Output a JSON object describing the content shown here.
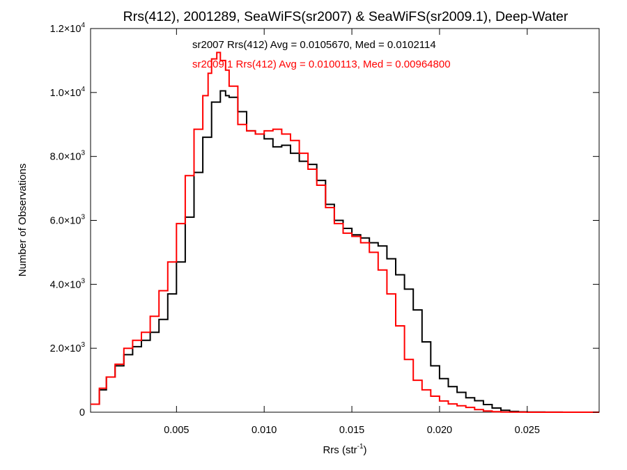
{
  "chart_data": {
    "type": "line",
    "title": "Rrs(412), 2001289, SeaWiFS(sr2007) & SeaWiFS(sr2009.1), Deep-Water",
    "xlabel": {
      "main": "Rrs (str",
      "sup": "-1",
      "close": ")"
    },
    "ylabel": "Number of Observations",
    "xlim": [
      0.0001,
      0.0291
    ],
    "ylim": [
      0,
      12000
    ],
    "x_ticks": [
      {
        "value": 0.005,
        "label": "0.005"
      },
      {
        "value": 0.01,
        "label": "0.010"
      },
      {
        "value": 0.015,
        "label": "0.015"
      },
      {
        "value": 0.02,
        "label": "0.020"
      },
      {
        "value": 0.025,
        "label": "0.025"
      }
    ],
    "y_ticks": [
      {
        "value": 0,
        "mant": "0",
        "exp": ""
      },
      {
        "value": 2000,
        "mant": "2.0×10",
        "exp": "3"
      },
      {
        "value": 4000,
        "mant": "4.0×10",
        "exp": "3"
      },
      {
        "value": 6000,
        "mant": "6.0×10",
        "exp": "3"
      },
      {
        "value": 8000,
        "mant": "8.0×10",
        "exp": "3"
      },
      {
        "value": 10000,
        "mant": "1.0×10",
        "exp": "4"
      },
      {
        "value": 12000,
        "mant": "1.2×10",
        "exp": "4"
      }
    ],
    "annotations": [
      {
        "text": "sr2007 Rrs(412) Avg = 0.0105670, Med = 0.0102114",
        "color": "#000000"
      },
      {
        "text": "sr2009.1 Rrs(412) Avg = 0.0100113, Med = 0.00964800",
        "color": "#ff0000"
      }
    ],
    "style": "step",
    "series": [
      {
        "color": "#000000",
        "x": [
          0.0001,
          0.0006,
          0.001,
          0.0015,
          0.002,
          0.0025,
          0.003,
          0.0035,
          0.004,
          0.0045,
          0.005,
          0.0055,
          0.006,
          0.0065,
          0.007,
          0.0075,
          0.0078,
          0.008,
          0.0085,
          0.009,
          0.0095,
          0.01,
          0.0105,
          0.011,
          0.0115,
          0.012,
          0.0125,
          0.013,
          0.0135,
          0.014,
          0.0145,
          0.015,
          0.0155,
          0.016,
          0.0165,
          0.017,
          0.0175,
          0.018,
          0.0185,
          0.019,
          0.0195,
          0.02,
          0.0205,
          0.021,
          0.0215,
          0.022,
          0.0225,
          0.023,
          0.0235,
          0.024,
          0.0245,
          0.025,
          0.026,
          0.027,
          0.028,
          0.029
        ],
        "y": [
          250,
          700,
          1100,
          1450,
          1800,
          2050,
          2250,
          2500,
          2900,
          3700,
          4700,
          6100,
          7500,
          8600,
          9700,
          10050,
          9900,
          9850,
          9400,
          8800,
          8700,
          8550,
          8300,
          8350,
          8100,
          7850,
          7750,
          7250,
          6500,
          6000,
          5750,
          5550,
          5450,
          5300,
          5200,
          4800,
          4300,
          3850,
          3200,
          2200,
          1450,
          1050,
          800,
          620,
          450,
          360,
          240,
          130,
          60,
          25,
          10,
          5,
          2,
          0,
          0,
          0
        ]
      },
      {
        "color": "#ff0000",
        "x": [
          0.0001,
          0.0006,
          0.001,
          0.0015,
          0.002,
          0.0025,
          0.003,
          0.0035,
          0.004,
          0.0045,
          0.005,
          0.0055,
          0.006,
          0.0065,
          0.0068,
          0.007,
          0.0073,
          0.0075,
          0.0078,
          0.008,
          0.0085,
          0.009,
          0.0095,
          0.01,
          0.0105,
          0.011,
          0.0115,
          0.012,
          0.0125,
          0.013,
          0.0135,
          0.014,
          0.0145,
          0.015,
          0.0155,
          0.016,
          0.0165,
          0.017,
          0.0175,
          0.018,
          0.0185,
          0.019,
          0.0195,
          0.02,
          0.0205,
          0.021,
          0.0215,
          0.022,
          0.0225,
          0.023,
          0.0235,
          0.024,
          0.025,
          0.026,
          0.027,
          0.028,
          0.029
        ],
        "y": [
          250,
          750,
          1100,
          1500,
          2000,
          2250,
          2500,
          3000,
          3800,
          4700,
          5900,
          7400,
          8850,
          9900,
          10600,
          11050,
          11250,
          11000,
          10700,
          10200,
          9000,
          8800,
          8700,
          8800,
          8850,
          8700,
          8500,
          8100,
          7600,
          7100,
          6400,
          5900,
          5600,
          5500,
          5300,
          5000,
          4450,
          3700,
          2700,
          1650,
          1000,
          700,
          500,
          350,
          260,
          200,
          150,
          80,
          40,
          15,
          6,
          2,
          0,
          0,
          0,
          0,
          0
        ]
      }
    ]
  }
}
